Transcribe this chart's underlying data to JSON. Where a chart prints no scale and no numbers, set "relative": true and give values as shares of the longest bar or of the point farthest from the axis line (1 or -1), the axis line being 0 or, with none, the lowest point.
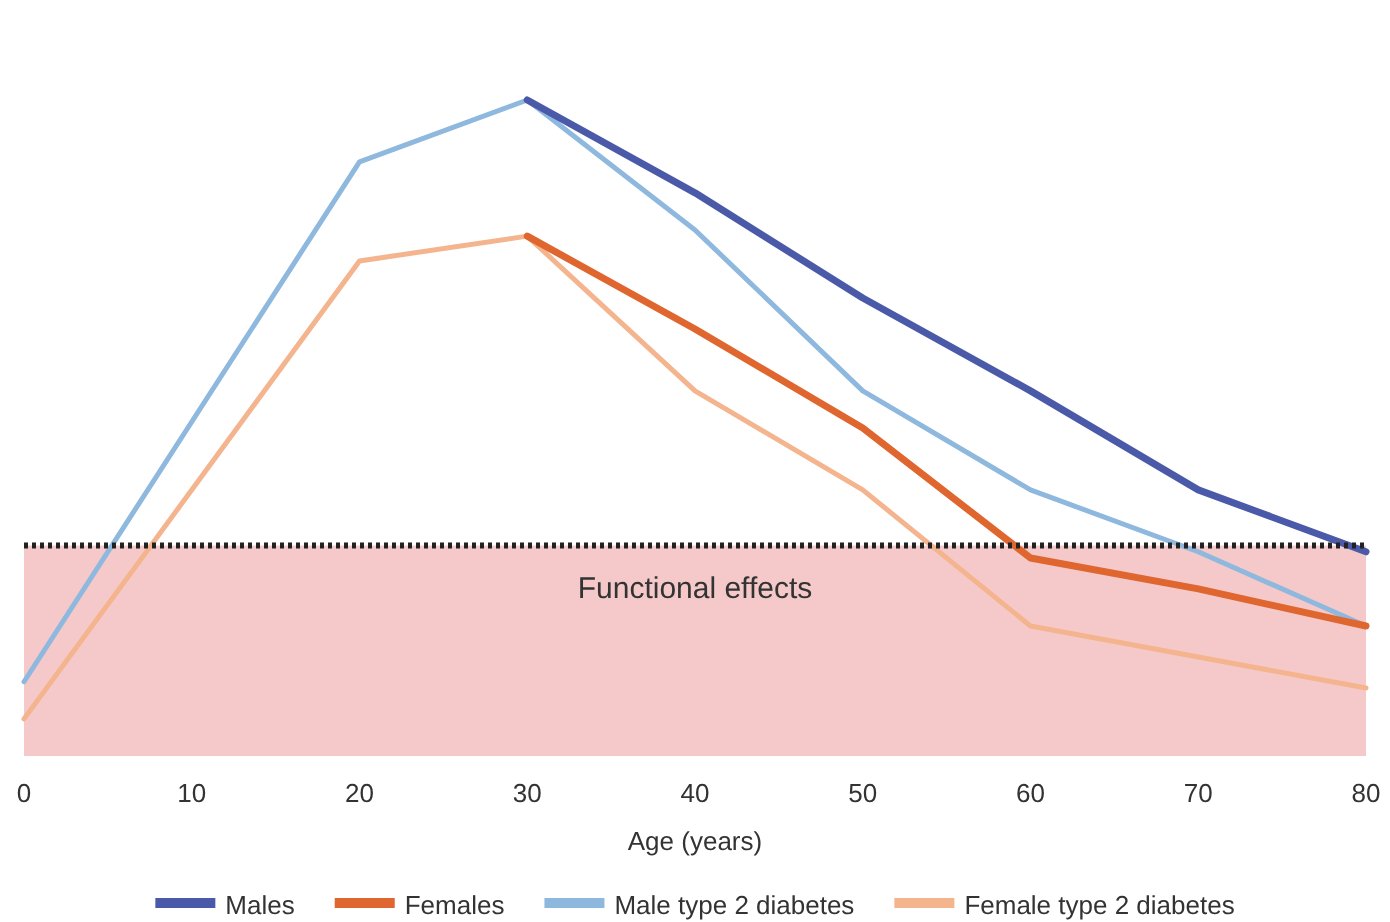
{
  "chart_data": {
    "type": "line",
    "relative": true,
    "xlabel": "Age (years)",
    "xlim": [
      0,
      80
    ],
    "xticks": [
      0,
      10,
      20,
      30,
      40,
      50,
      60,
      70,
      80
    ],
    "legend": "bottom",
    "grid": false,
    "marker": "none",
    "line_style": "solid",
    "series": [
      {
        "name": "Males",
        "color": "#4a5aa8",
        "x": [
          30,
          40,
          50,
          60,
          70,
          80
        ],
        "values": [
          1.0,
          0.85,
          0.68,
          0.53,
          0.37,
          0.27
        ]
      },
      {
        "name": "Females",
        "color": "#e0662f",
        "x": [
          30,
          40,
          50,
          60,
          70,
          80
        ],
        "values": [
          0.78,
          0.63,
          0.47,
          0.26,
          0.21,
          0.15
        ]
      },
      {
        "name": "Male type 2 diabetes",
        "color": "#8fb8de",
        "x": [
          0,
          20,
          30,
          40,
          50,
          60,
          70,
          80
        ],
        "values": [
          0.06,
          0.9,
          1.0,
          0.79,
          0.53,
          0.37,
          0.27,
          0.15
        ]
      },
      {
        "name": "Female type 2 diabetes",
        "color": "#f4b48e",
        "x": [
          0,
          20,
          30,
          40,
          50,
          60,
          70,
          80
        ],
        "values": [
          0,
          0.74,
          0.78,
          0.53,
          0.37,
          0.15,
          0.1,
          0.05
        ]
      }
    ],
    "ref_lines": [
      {
        "axis": "y",
        "value": 0.28,
        "color": "#222222",
        "line_style": "dotted"
      }
    ],
    "bands": [
      {
        "axis": "y",
        "from": -0.06,
        "to": 0.28,
        "label": "Functional effects",
        "color": "#f5c9c9"
      }
    ]
  }
}
